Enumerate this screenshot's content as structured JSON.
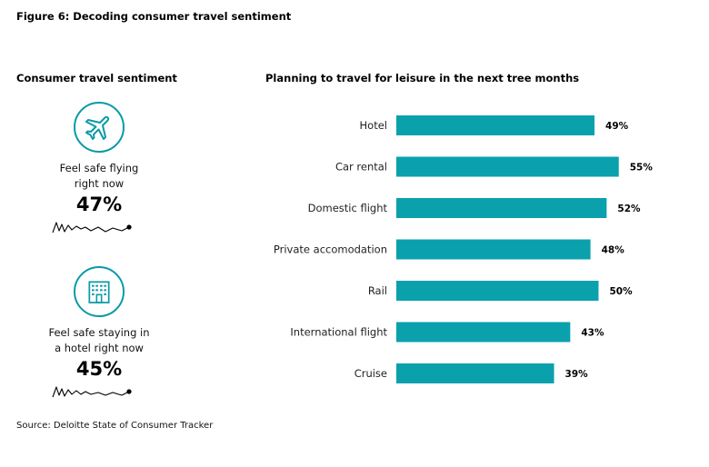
{
  "figure_title": "Figure 6: Decoding consumer travel sentiment",
  "left_panel": {
    "heading": "Consumer travel sentiment",
    "cards": [
      {
        "icon": "airplane-icon",
        "label_line1": "Feel safe flying",
        "label_line2": "right now",
        "value": "47%"
      },
      {
        "icon": "hotel-icon",
        "label_line1": "Feel safe staying in",
        "label_line2": "a hotel right now",
        "value": "45%"
      }
    ]
  },
  "colors": {
    "accent": "#0a9aa7",
    "bar": "#0aa1ad"
  },
  "source": "Source: Deloitte State of Consumer Tracker",
  "chart_data": {
    "type": "bar",
    "orientation": "horizontal",
    "title": "Planning to travel for leisure in the next tree months",
    "categories": [
      "Hotel",
      "Car rental",
      "Domestic flight",
      "Private accomodation",
      "Rail",
      "International flight",
      "Cruise"
    ],
    "values": [
      49,
      55,
      52,
      48,
      50,
      43,
      39
    ],
    "value_labels": [
      "49%",
      "55%",
      "52%",
      "48%",
      "50%",
      "43%",
      "39%"
    ],
    "xlabel": "",
    "ylabel": "",
    "xlim": [
      0,
      100
    ],
    "grid": false
  }
}
